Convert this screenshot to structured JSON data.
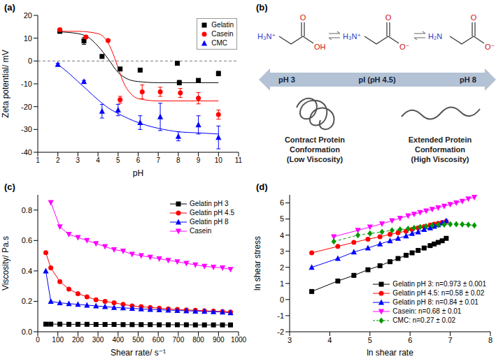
{
  "chart_data": [
    {
      "panel": "(a)",
      "type": "scatter",
      "x_label": "pH",
      "y_label": "Zeta potential/ mV",
      "xlim": [
        1,
        11
      ],
      "xticks": [
        1,
        2,
        3,
        4,
        5,
        6,
        7,
        8,
        9,
        10,
        11
      ],
      "ylim": [
        -40,
        20
      ],
      "yticks": [
        -40,
        -30,
        -20,
        -10,
        0,
        10,
        20
      ],
      "hline": 0,
      "legend": "upper right",
      "series": [
        {
          "name": "Gelatin",
          "color": "#000000",
          "marker": "square",
          "x": [
            2.1,
            3.3,
            4.2,
            5.1,
            6.1,
            7.95,
            8.05,
            9,
            10
          ],
          "values": [
            13,
            8.8,
            2,
            -3.5,
            -4,
            -1,
            -9.5,
            -8.5,
            -5.5
          ],
          "errors": [
            0.8,
            1.5,
            0.5,
            0.5,
            0.5,
            0.5,
            1,
            0.5,
            1
          ],
          "fit_x": [
            2,
            3,
            3.5,
            4,
            4.5,
            5,
            5.5,
            6,
            7,
            8,
            9,
            10
          ],
          "fit_values": [
            12.8,
            12,
            10.5,
            6.5,
            1,
            -5,
            -8,
            -9,
            -9.5,
            -9.5,
            -9.5,
            -9.5
          ]
        },
        {
          "name": "Casein",
          "color": "#ff0000",
          "marker": "circle",
          "x": [
            2.1,
            3.4,
            4.5,
            5.1,
            6.2,
            7.1,
            8.1,
            9,
            10
          ],
          "values": [
            13.7,
            10.5,
            9,
            -17,
            -13.5,
            -13.5,
            -14,
            -16.3,
            -23.5
          ],
          "errors": [
            0.5,
            0.5,
            0.5,
            1.5,
            3,
            2,
            2,
            2.5,
            2
          ],
          "fit_x": [
            2,
            3,
            4,
            4.5,
            4.8,
            5,
            5.3,
            5.6,
            6,
            7,
            8,
            9,
            10
          ],
          "fit_values": [
            13,
            13,
            12,
            8,
            2,
            -3,
            -10,
            -14,
            -16.5,
            -17.5,
            -17.5,
            -17.5,
            -17.5
          ]
        },
        {
          "name": "CMC",
          "color": "#0000ff",
          "marker": "triangle",
          "x": [
            2,
            3.3,
            4.2,
            5,
            6.1,
            7.1,
            8,
            9,
            10
          ],
          "values": [
            -1.5,
            -9,
            -22,
            -21.5,
            -27,
            -24.5,
            -33,
            -28,
            -33.5
          ],
          "errors": [
            0.5,
            0.5,
            3,
            2.5,
            3,
            6,
            2,
            4,
            5
          ],
          "fit_x": [
            2,
            2.5,
            3,
            3.5,
            4,
            4.5,
            5,
            6,
            7,
            8,
            9,
            10
          ],
          "fit_values": [
            -1.5,
            -5,
            -9,
            -13,
            -17,
            -20.5,
            -23,
            -27,
            -29.5,
            -31,
            -31.5,
            -32
          ]
        }
      ]
    },
    {
      "panel": "(c)",
      "type": "line",
      "x_label": "Shear rate/ s⁻¹",
      "y_label": "Viscosity/ Pa.s",
      "x": [
        40,
        65,
        110,
        155,
        200,
        245,
        290,
        335,
        380,
        425,
        470,
        515,
        560,
        605,
        650,
        695,
        740,
        785,
        830,
        875,
        920,
        960
      ],
      "xlim": [
        0,
        1000
      ],
      "xticks": [
        0,
        100,
        200,
        300,
        400,
        500,
        600,
        700,
        800,
        900,
        1000
      ],
      "ylim": [
        0,
        0.9
      ],
      "yticks": [
        {
          "value": 0,
          "label": "0.0"
        },
        0.2,
        0.4,
        0.6,
        0.8
      ],
      "legend": "upper right",
      "series": [
        {
          "name": "Gelatin pH 3",
          "color": "#000000",
          "marker": "square",
          "values": [
            0.05,
            0.05,
            0.05,
            0.049,
            0.049,
            0.049,
            0.048,
            0.048,
            0.048,
            0.047,
            0.047,
            0.047,
            0.047,
            0.046,
            0.046,
            0.046,
            0.046,
            0.045,
            0.045,
            0.045,
            0.045,
            0.045
          ]
        },
        {
          "name": "Gelatin pH 4.5",
          "color": "#ff0000",
          "marker": "circle",
          "values": [
            0.52,
            0.42,
            0.33,
            0.28,
            0.25,
            0.23,
            0.21,
            0.2,
            0.19,
            0.18,
            0.17,
            0.165,
            0.16,
            0.155,
            0.15,
            0.147,
            0.144,
            0.141,
            0.138,
            0.135,
            0.133,
            0.13
          ]
        },
        {
          "name": "Gelatin pH 8",
          "color": "#0000ff",
          "marker": "triangle",
          "values": [
            0.4,
            0.2,
            0.19,
            0.185,
            0.18,
            0.175,
            0.17,
            0.165,
            0.16,
            0.157,
            0.154,
            0.15,
            0.147,
            0.145,
            0.142,
            0.14,
            0.138,
            0.136,
            0.134,
            0.132,
            0.13,
            0.125
          ]
        },
        {
          "name": "Casein",
          "color": "#ff00ff",
          "marker": "triangle_down",
          "values": [
            null,
            0.85,
            0.69,
            0.64,
            0.62,
            0.6,
            0.58,
            0.56,
            0.54,
            0.53,
            0.51,
            0.5,
            0.49,
            0.48,
            0.47,
            0.46,
            0.45,
            0.44,
            0.43,
            0.425,
            0.42,
            0.41
          ]
        }
      ]
    },
    {
      "panel": "(d)",
      "type": "line",
      "x_label": "ln shear rate",
      "y_label": "ln shear stress",
      "xlim": [
        3,
        8
      ],
      "xticks": [
        3,
        4,
        5,
        6,
        7,
        8
      ],
      "ylim": [
        -2,
        6.5
      ],
      "yticks": [
        -2,
        -1,
        0,
        1,
        2,
        3,
        4,
        5,
        6
      ],
      "legend": "lower right",
      "series": [
        {
          "name": "Gelatin pH 3: n=0.973 ± 0.001",
          "color": "#000000",
          "marker": "square",
          "line_style": "solid",
          "x": [
            3.55,
            4.2,
            4.6,
            4.95,
            5.25,
            5.5,
            5.7,
            5.9,
            6.05,
            6.2,
            6.35,
            6.5,
            6.6,
            6.7,
            6.8,
            6.9
          ],
          "values": [
            0.5,
            1.15,
            1.5,
            1.85,
            2.1,
            2.35,
            2.55,
            2.75,
            2.9,
            3.05,
            3.2,
            3.35,
            3.45,
            3.55,
            3.65,
            3.8
          ]
        },
        {
          "name": "Gelatin pH 4.5: n=0.58 ± 0.02",
          "color": "#ff0000",
          "marker": "circle",
          "line_style": "solid",
          "x": [
            3.55,
            4.2,
            4.6,
            4.95,
            5.25,
            5.5,
            5.7,
            5.9,
            6.05,
            6.2,
            6.35,
            6.5,
            6.6,
            6.7,
            6.8,
            6.9
          ],
          "values": [
            2.9,
            3.3,
            3.55,
            3.75,
            3.9,
            4.05,
            4.15,
            4.25,
            4.35,
            4.45,
            4.53,
            4.62,
            4.68,
            4.73,
            4.79,
            4.85
          ]
        },
        {
          "name": "Gelatin pH 8: n=0.84 ± 0.01",
          "color": "#0000ff",
          "marker": "triangle",
          "line_style": "solid",
          "x": [
            3.55,
            4.2,
            4.6,
            4.95,
            5.25,
            5.5,
            5.7,
            5.9,
            6.05,
            6.2,
            6.35,
            6.5,
            6.6,
            6.7,
            6.8,
            6.9
          ],
          "values": [
            2.0,
            2.55,
            2.95,
            3.2,
            3.45,
            3.65,
            3.8,
            3.95,
            4.1,
            4.2,
            4.35,
            4.45,
            4.55,
            4.65,
            4.75,
            4.9
          ]
        },
        {
          "name": "Casein: n=0.68 ± 0.01",
          "color": "#ff00ff",
          "marker": "triangle_down",
          "line_style": "solid",
          "x": [
            4.1,
            4.7,
            5.0,
            5.3,
            5.55,
            5.75,
            5.95,
            6.1,
            6.25,
            6.4,
            6.55,
            6.7,
            6.85,
            7.0,
            7.15,
            7.3,
            7.45,
            7.6
          ],
          "values": [
            3.9,
            4.3,
            4.5,
            4.7,
            4.9,
            5.05,
            5.2,
            5.3,
            5.4,
            5.5,
            5.6,
            5.7,
            5.8,
            5.9,
            6.0,
            6.1,
            6.25,
            6.35
          ]
        },
        {
          "name": "CMC: n=0.27 ± 0.02",
          "color": "#009900",
          "marker": "diamond",
          "line_style": "dashed",
          "x": [
            4.1,
            4.7,
            5.0,
            5.3,
            5.55,
            5.75,
            5.95,
            6.1,
            6.25,
            6.4,
            6.55,
            6.7,
            6.85,
            7.0,
            7.15,
            7.3,
            7.45,
            7.6
          ],
          "values": [
            3.6,
            4.0,
            4.1,
            4.2,
            4.3,
            4.35,
            4.4,
            4.45,
            4.5,
            4.55,
            4.6,
            4.63,
            4.66,
            4.68,
            4.68,
            4.67,
            4.65,
            4.6
          ]
        }
      ]
    }
  ],
  "diagram": {
    "panel": "(b)",
    "structures": [
      {
        "amine": "H₃N⁺",
        "carbonyl": "O",
        "hydroxyl": "OH"
      },
      {
        "amine": "H₃N⁺",
        "carbonyl": "O",
        "hydroxyl": "O⁻"
      },
      {
        "amine": "H₂N",
        "carbonyl": "O",
        "hydroxyl": "O⁻"
      }
    ],
    "scale": {
      "left": "pH 3",
      "middle": "pI (pH 4.5)",
      "right": "pH 8"
    },
    "conformations": [
      {
        "label": "Contract Protein Conformation",
        "note": "(Low Viscosity)"
      },
      {
        "label": "Extended Protein Conformation",
        "note": "(High Viscosity)"
      }
    ]
  }
}
